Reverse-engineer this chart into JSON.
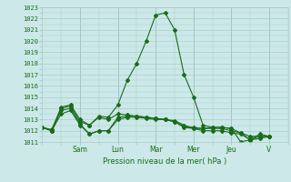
{
  "xlabel": "Pression niveau de la mer( hPa )",
  "background_color": "#cce8e8",
  "grid_color": "#aacccc",
  "grid_color_major": "#99bbbb",
  "line_color": "#1a6b1a",
  "ylim": [
    1011,
    1023
  ],
  "yticks": [
    1011,
    1012,
    1013,
    1014,
    1015,
    1016,
    1017,
    1018,
    1019,
    1020,
    1021,
    1022,
    1023
  ],
  "day_labels": [
    "Sam",
    "Lun",
    "Mar",
    "Mer",
    "Jeu",
    "V"
  ],
  "day_positions": [
    2,
    4,
    6,
    8,
    10,
    12
  ],
  "xlim": [
    0,
    13
  ],
  "series": [
    [
      1012.3,
      1012.0,
      1014.1,
      1014.3,
      1013.0,
      1012.5,
      1013.3,
      1013.2,
      1014.3,
      1016.5,
      1018.0,
      1020.0,
      1022.3,
      1022.5,
      1021.0,
      1017.0,
      1015.0,
      1012.5,
      1012.3,
      1012.3,
      1012.2,
      1011.0,
      1011.2,
      1011.7,
      1011.5
    ],
    [
      1012.3,
      1012.1,
      1014.0,
      1014.2,
      1012.8,
      1012.5,
      1013.2,
      1013.0,
      1013.5,
      1013.4,
      1013.3,
      1013.2,
      1013.1,
      1013.0,
      1012.9,
      1012.5,
      1012.2,
      1012.2,
      1012.3,
      1012.3,
      1012.2,
      1011.8,
      1011.5,
      1011.5,
      1011.5
    ],
    [
      1012.3,
      1012.0,
      1013.8,
      1014.0,
      1012.6,
      1011.7,
      1012.0,
      1012.0,
      1013.2,
      1013.3,
      1013.3,
      1013.2,
      1013.1,
      1013.0,
      1012.8,
      1012.4,
      1012.3,
      1012.2,
      1012.2,
      1012.2,
      1012.0,
      1011.8,
      1011.2,
      1011.5,
      1011.5
    ],
    [
      1012.3,
      1012.0,
      1013.5,
      1013.8,
      1012.5,
      1011.7,
      1012.0,
      1012.0,
      1013.0,
      1013.2,
      1013.2,
      1013.1,
      1013.0,
      1013.0,
      1012.8,
      1012.3,
      1012.2,
      1012.0,
      1012.0,
      1012.0,
      1011.8,
      1011.7,
      1011.2,
      1011.3,
      1011.5
    ]
  ]
}
